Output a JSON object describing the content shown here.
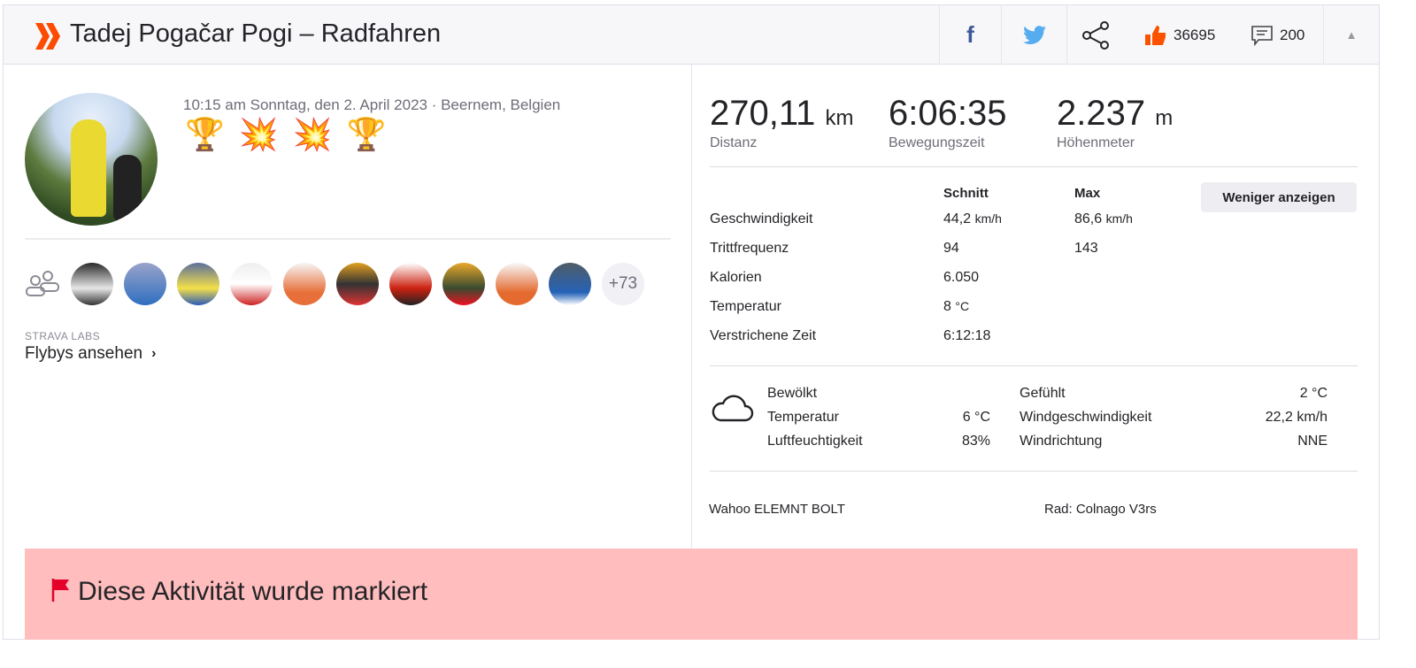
{
  "header": {
    "title": "Tadej Pogačar Pogi – Radfahren",
    "kudos_count": "36695",
    "comment_count": "200",
    "icons": [
      "strava-chevrons-icon",
      "facebook-icon",
      "twitter-icon",
      "share-icon",
      "thumbs-up-icon",
      "comment-icon",
      "collapse-triangle-icon"
    ]
  },
  "activity": {
    "date_location": "10:15 am Sonntag, den 2. April 2023 · Beernem, Belgien",
    "achievements": [
      "🏆",
      "💥",
      "💥",
      "🏆"
    ],
    "more_athletes": "+73",
    "labs_label": "STRAVA LABS",
    "flyby_link": "Flybys ansehen"
  },
  "stats": {
    "primary": [
      {
        "value": "270,11",
        "unit": "km",
        "label": "Distanz"
      },
      {
        "value": "6:06:35",
        "unit": "",
        "label": "Bewegungszeit"
      },
      {
        "value": "2.237",
        "unit": "m",
        "label": "Höhenmeter"
      }
    ],
    "col_avg": "Schnitt",
    "col_max": "Max",
    "less_button": "Weniger anzeigen",
    "rows": [
      {
        "label": "Geschwindigkeit",
        "avg": "44,2",
        "avg_unit": "km/h",
        "max": "86,6",
        "max_unit": "km/h"
      },
      {
        "label": "Trittfrequenz",
        "avg": "94",
        "avg_unit": "",
        "max": "143",
        "max_unit": ""
      },
      {
        "label": "Kalorien",
        "avg": "6.050",
        "avg_unit": "",
        "max": "",
        "max_unit": ""
      },
      {
        "label": "Temperatur",
        "avg": "8",
        "avg_unit": "°C",
        "max": "",
        "max_unit": ""
      },
      {
        "label": "Verstrichene Zeit",
        "avg": "6:12:18",
        "avg_unit": "",
        "max": "",
        "max_unit": ""
      }
    ]
  },
  "weather": {
    "condition": "Bewölkt",
    "temp_label": "Temperatur",
    "temp": "6 °C",
    "humidity_label": "Luftfeuchtigkeit",
    "humidity": "83%",
    "feels_label": "Gefühlt",
    "feels": "2 °C",
    "wind_speed_label": "Windgeschwindigkeit",
    "wind_speed": "22,2 km/h",
    "wind_dir_label": "Windrichtung",
    "wind_dir": "NNE"
  },
  "gear": {
    "device": "Wahoo ELEMNT BOLT",
    "bike": "Rad: Colnago V3rs"
  },
  "flag": {
    "text": "Diese Aktivität wurde markiert",
    "color": "#ffbdbd"
  },
  "colors": {
    "strava_orange": "#fc4c02",
    "facebook": "#3b5998",
    "twitter": "#55acee"
  }
}
